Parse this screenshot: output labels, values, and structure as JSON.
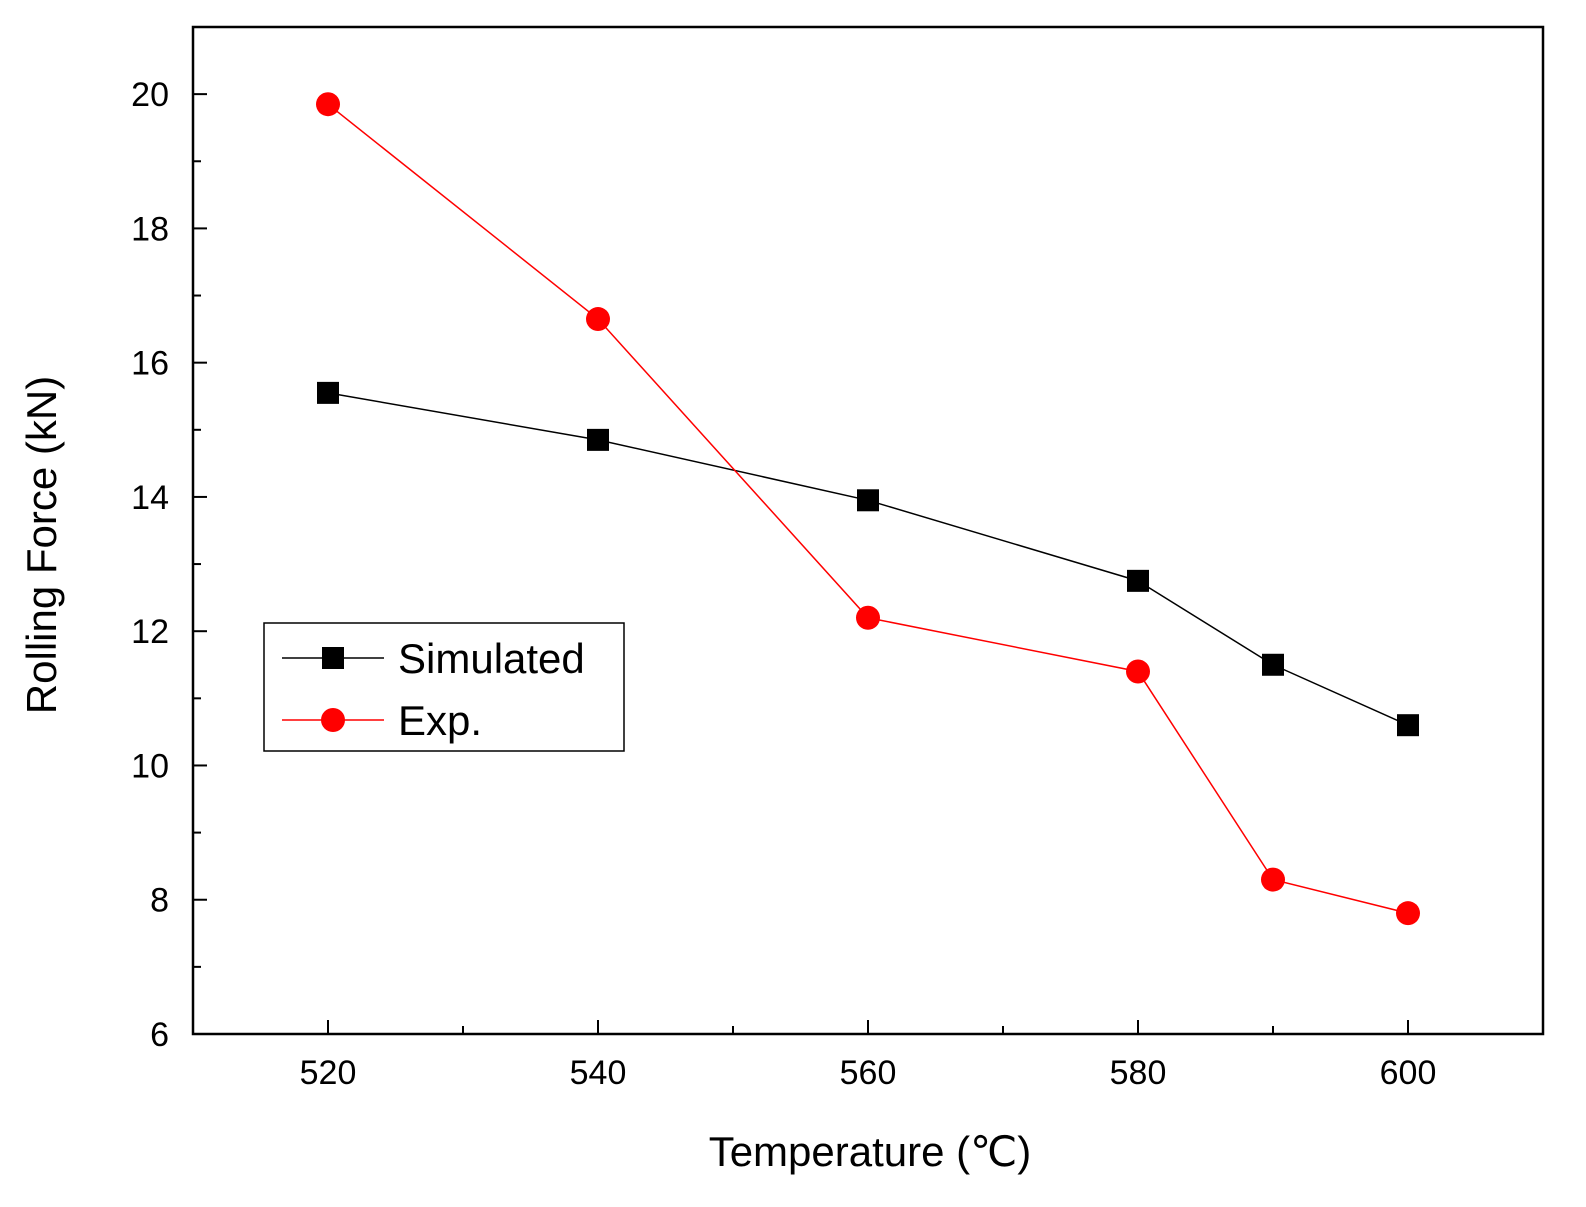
{
  "chart_data": {
    "type": "line",
    "title": "",
    "xlabel": "Temperature (℃)",
    "ylabel": "Rolling Force (kN)",
    "xlim": [
      510,
      610
    ],
    "ylim": [
      6,
      21
    ],
    "x_ticks": [
      520,
      540,
      560,
      580,
      600
    ],
    "x_tick_labels": [
      "520",
      "540",
      "560",
      "580",
      "600"
    ],
    "x_minor_ticks": [
      530,
      550,
      570,
      590
    ],
    "y_ticks": [
      6,
      8,
      10,
      12,
      14,
      16,
      18,
      20
    ],
    "y_tick_labels": [
      "6",
      "8",
      "10",
      "12",
      "14",
      "16",
      "18",
      "20"
    ],
    "y_minor_ticks": [
      7,
      9,
      11,
      13,
      15,
      17,
      19
    ],
    "grid": false,
    "legend_position": "center-left",
    "series": [
      {
        "name": "Simulated",
        "marker": "square",
        "color": "#000000",
        "x": [
          520,
          540,
          560,
          580,
          590,
          600
        ],
        "y": [
          15.55,
          14.85,
          13.95,
          12.75,
          11.5,
          10.6
        ]
      },
      {
        "name": "Exp.",
        "marker": "circle",
        "color": "#ff0000",
        "x": [
          520,
          540,
          560,
          580,
          590,
          600
        ],
        "y": [
          19.85,
          16.65,
          12.2,
          11.4,
          8.3,
          7.8
        ]
      }
    ]
  }
}
